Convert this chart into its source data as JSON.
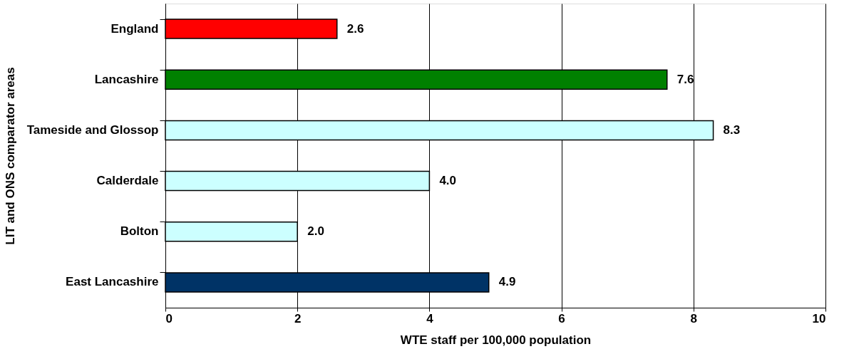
{
  "chart_data": {
    "type": "bar",
    "orientation": "horizontal",
    "xlabel": "WTE staff per 100,000 population",
    "ylabel": "LIT and ONS comparator areas",
    "categories": [
      "England",
      "Lancashire",
      "Tameside and Glossop",
      "Calderdale",
      "Bolton",
      "East Lancashire"
    ],
    "values": [
      2.6,
      7.6,
      8.3,
      4.0,
      2.0,
      4.9
    ],
    "colors": [
      "#ff0000",
      "#008000",
      "#ccffff",
      "#ccffff",
      "#ccffff",
      "#003366"
    ],
    "value_labels": [
      "2.6",
      "7.6",
      "8.3",
      "4.0",
      "2.0",
      "4.9"
    ],
    "xlim": [
      0,
      10
    ],
    "xticks": [
      0,
      2,
      4,
      6,
      8,
      10
    ],
    "grid": "x"
  }
}
